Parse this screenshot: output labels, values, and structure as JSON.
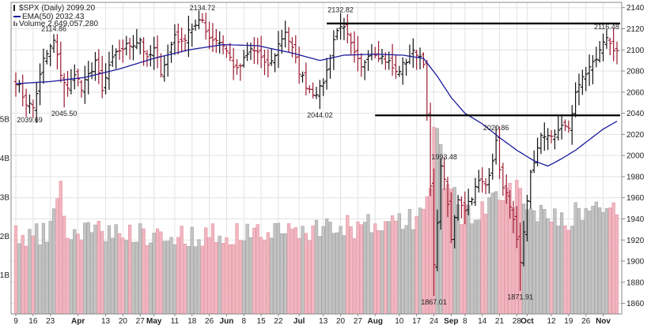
{
  "legend": {
    "symbol": "$SPX (Daily) 2099.20",
    "ema": "EMA(50) 2032.43",
    "volume": "Volume 2,649,057,280"
  },
  "chart_data": {
    "type": "candlestick-with-volume",
    "symbol": "$SPX",
    "period": "Daily",
    "last_close": 2099.2,
    "ema_period": 50,
    "ema_last": 2032.43,
    "last_volume": 2649057280,
    "grid": true,
    "legend_position": "top-left",
    "y_price": {
      "min": 1850,
      "max": 2145,
      "ticks": [
        1860,
        1880,
        1900,
        1920,
        1940,
        1960,
        1980,
        2000,
        2020,
        2040,
        2060,
        2080,
        2100,
        2120,
        2140
      ]
    },
    "y_volume": {
      "min": 0,
      "max": 8,
      "ticks": [
        1,
        2,
        3,
        4,
        5
      ],
      "tick_labels": [
        "1B",
        "2B",
        "3B",
        "4B",
        "5B"
      ]
    },
    "x_ticks": [
      {
        "idx": 0,
        "label": "9",
        "month": false
      },
      {
        "idx": 5,
        "label": "16",
        "month": false
      },
      {
        "idx": 10,
        "label": "23",
        "month": false
      },
      {
        "idx": 18,
        "label": "Apr",
        "month": true
      },
      {
        "idx": 26,
        "label": "13",
        "month": false
      },
      {
        "idx": 31,
        "label": "20",
        "month": false
      },
      {
        "idx": 36,
        "label": "27",
        "month": false
      },
      {
        "idx": 40,
        "label": "May",
        "month": true
      },
      {
        "idx": 46,
        "label": "11",
        "month": false
      },
      {
        "idx": 51,
        "label": "18",
        "month": false
      },
      {
        "idx": 56,
        "label": "26",
        "month": false
      },
      {
        "idx": 61,
        "label": "Jun",
        "month": true
      },
      {
        "idx": 66,
        "label": "8",
        "month": false
      },
      {
        "idx": 71,
        "label": "15",
        "month": false
      },
      {
        "idx": 76,
        "label": "22",
        "month": false
      },
      {
        "idx": 82,
        "label": "Jul",
        "month": true
      },
      {
        "idx": 89,
        "label": "13",
        "month": false
      },
      {
        "idx": 94,
        "label": "20",
        "month": false
      },
      {
        "idx": 99,
        "label": "27",
        "month": false
      },
      {
        "idx": 104,
        "label": "Aug",
        "month": true
      },
      {
        "idx": 111,
        "label": "10",
        "month": false
      },
      {
        "idx": 116,
        "label": "17",
        "month": false
      },
      {
        "idx": 121,
        "label": "24",
        "month": false
      },
      {
        "idx": 126,
        "label": "Sep",
        "month": true
      },
      {
        "idx": 130,
        "label": "8",
        "month": false
      },
      {
        "idx": 135,
        "label": "14",
        "month": false
      },
      {
        "idx": 140,
        "label": "21",
        "month": false
      },
      {
        "idx": 145,
        "label": "28",
        "month": false
      },
      {
        "idx": 148,
        "label": "Oct",
        "month": true
      },
      {
        "idx": 155,
        "label": "12",
        "month": false
      },
      {
        "idx": 160,
        "label": "19",
        "month": false
      },
      {
        "idx": 165,
        "label": "26",
        "month": false
      },
      {
        "idx": 170,
        "label": "Nov",
        "month": true
      }
    ],
    "horizontal_lines": [
      {
        "value": 2125,
        "from_idx": 90,
        "to_idx": 174
      },
      {
        "value": 2038,
        "from_idx": 104,
        "to_idx": 174
      }
    ],
    "annotations": [
      {
        "label": "2114.86",
        "idx": 11,
        "value": 2114.86,
        "position": "above"
      },
      {
        "label": "2039.69",
        "idx": 4,
        "value": 2039.69,
        "position": "below"
      },
      {
        "label": "2045.50",
        "idx": 14,
        "value": 2045.5,
        "position": "below"
      },
      {
        "label": "2134.72",
        "idx": 54,
        "value": 2134.72,
        "position": "above"
      },
      {
        "label": "2044.02",
        "idx": 88,
        "value": 2044.02,
        "position": "below"
      },
      {
        "label": "2132.82",
        "idx": 94,
        "value": 2132.82,
        "position": "above"
      },
      {
        "label": "1993.48",
        "idx": 124,
        "value": 1993.48,
        "position": "above"
      },
      {
        "label": "1867.01",
        "idx": 121,
        "value": 1867.01,
        "position": "below"
      },
      {
        "label": "2020.86",
        "idx": 139,
        "value": 2020.86,
        "position": "above"
      },
      {
        "label": "1871.91",
        "idx": 146,
        "value": 1871.91,
        "position": "below"
      },
      {
        "label": "2116.48",
        "idx": 171,
        "value": 2116.48,
        "position": "above"
      }
    ],
    "close_path": [
      [
        0,
        2071
      ],
      [
        3,
        2050
      ],
      [
        5,
        2045
      ],
      [
        8,
        2090
      ],
      [
        11,
        2108
      ],
      [
        13,
        2078
      ],
      [
        15,
        2062
      ],
      [
        17,
        2080
      ],
      [
        19,
        2062
      ],
      [
        21,
        2075
      ],
      [
        23,
        2090
      ],
      [
        25,
        2060
      ],
      [
        27,
        2085
      ],
      [
        30,
        2100
      ],
      [
        33,
        2105
      ],
      [
        36,
        2110
      ],
      [
        38,
        2090
      ],
      [
        40,
        2100
      ],
      [
        42,
        2080
      ],
      [
        44,
        2095
      ],
      [
        46,
        2115
      ],
      [
        48,
        2105
      ],
      [
        50,
        2120
      ],
      [
        52,
        2122
      ],
      [
        54,
        2128
      ],
      [
        56,
        2112
      ],
      [
        58,
        2110
      ],
      [
        60,
        2105
      ],
      [
        62,
        2092
      ],
      [
        64,
        2080
      ],
      [
        66,
        2090
      ],
      [
        68,
        2100
      ],
      [
        70,
        2098
      ],
      [
        72,
        2085
      ],
      [
        74,
        2088
      ],
      [
        76,
        2105
      ],
      [
        78,
        2118
      ],
      [
        80,
        2100
      ],
      [
        82,
        2080
      ],
      [
        84,
        2067
      ],
      [
        86,
        2060
      ],
      [
        88,
        2062
      ],
      [
        90,
        2080
      ],
      [
        92,
        2110
      ],
      [
        94,
        2125
      ],
      [
        96,
        2112
      ],
      [
        98,
        2095
      ],
      [
        100,
        2082
      ],
      [
        102,
        2098
      ],
      [
        104,
        2098
      ],
      [
        106,
        2093
      ],
      [
        108,
        2088
      ],
      [
        110,
        2078
      ],
      [
        112,
        2085
      ],
      [
        114,
        2095
      ],
      [
        116,
        2098
      ],
      [
        118,
        2090
      ],
      [
        119,
        2035
      ],
      [
        120,
        1970
      ],
      [
        121,
        1893
      ],
      [
        122,
        1940
      ],
      [
        123,
        1987
      ],
      [
        124,
        1980
      ],
      [
        126,
        1920
      ],
      [
        128,
        1960
      ],
      [
        130,
        1950
      ],
      [
        132,
        1962
      ],
      [
        134,
        1975
      ],
      [
        136,
        1972
      ],
      [
        138,
        1998
      ],
      [
        139,
        2011
      ],
      [
        141,
        1968
      ],
      [
        143,
        1955
      ],
      [
        145,
        1918
      ],
      [
        146,
        1895
      ],
      [
        147,
        1924
      ],
      [
        148,
        1955
      ],
      [
        149,
        1985
      ],
      [
        150,
        1995
      ],
      [
        152,
        2016
      ],
      [
        154,
        2021
      ],
      [
        156,
        2017
      ],
      [
        158,
        2030
      ],
      [
        160,
        2024
      ],
      [
        162,
        2058
      ],
      [
        164,
        2077
      ],
      [
        166,
        2080
      ],
      [
        168,
        2090
      ],
      [
        170,
        2104
      ],
      [
        171,
        2114
      ],
      [
        172,
        2105
      ],
      [
        174,
        2099.2
      ]
    ],
    "ema_path": [
      [
        0,
        2068
      ],
      [
        10,
        2070
      ],
      [
        20,
        2074
      ],
      [
        30,
        2082
      ],
      [
        40,
        2092
      ],
      [
        50,
        2100
      ],
      [
        60,
        2105
      ],
      [
        70,
        2104
      ],
      [
        80,
        2097
      ],
      [
        88,
        2090
      ],
      [
        95,
        2095
      ],
      [
        104,
        2096
      ],
      [
        112,
        2095
      ],
      [
        118,
        2092
      ],
      [
        122,
        2075
      ],
      [
        126,
        2055
      ],
      [
        130,
        2040
      ],
      [
        135,
        2030
      ],
      [
        140,
        2017
      ],
      [
        145,
        2005
      ],
      [
        150,
        1995
      ],
      [
        154,
        1990
      ],
      [
        158,
        1997
      ],
      [
        162,
        2005
      ],
      [
        166,
        2015
      ],
      [
        170,
        2025
      ],
      [
        174,
        2032.43
      ]
    ],
    "volume_path": [
      [
        0,
        2.0
      ],
      [
        10,
        2.1
      ],
      [
        13,
        3.5
      ],
      [
        14,
        2.2
      ],
      [
        30,
        2.1
      ],
      [
        50,
        2.0
      ],
      [
        70,
        2.1
      ],
      [
        90,
        2.2
      ],
      [
        110,
        2.3
      ],
      [
        118,
        2.6
      ],
      [
        120,
        3.6
      ],
      [
        121,
        4.5
      ],
      [
        122,
        5.0
      ],
      [
        123,
        3.8
      ],
      [
        125,
        3.5
      ],
      [
        128,
        2.7
      ],
      [
        135,
        2.6
      ],
      [
        140,
        2.8
      ],
      [
        143,
        3.3
      ],
      [
        145,
        3.1
      ],
      [
        147,
        2.9
      ],
      [
        150,
        2.7
      ],
      [
        160,
        2.5
      ],
      [
        165,
        2.6
      ],
      [
        170,
        2.7
      ],
      [
        174,
        2.65
      ]
    ]
  }
}
